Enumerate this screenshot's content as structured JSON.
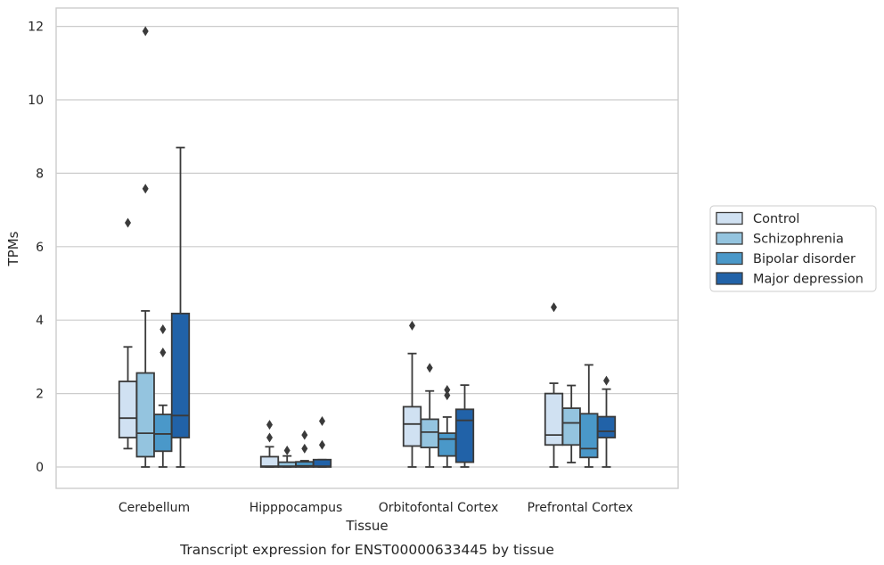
{
  "chart_data": {
    "type": "boxplot",
    "caption": "Transcript expression for ENST00000633445 by tissue",
    "xlabel": "Tissue",
    "ylabel": "TPMs",
    "ylim": [
      -0.58,
      12.5
    ],
    "yticks": [
      0,
      2,
      4,
      6,
      8,
      10,
      12
    ],
    "grid": true,
    "legend_position": "right",
    "categories": [
      "Cerebellum",
      "Hipppocampus",
      "Orbitofontal Cortex",
      "Prefrontal Cortex"
    ],
    "series": [
      {
        "name": "Control",
        "color": "#d0e1f2",
        "boxes": [
          {
            "whislo": 0.5,
            "q1": 0.8,
            "med": 1.33,
            "q3": 2.33,
            "whishi": 3.27,
            "fliers": [
              6.65
            ]
          },
          {
            "whislo": 0.0,
            "q1": 0.0,
            "med": 0.02,
            "q3": 0.28,
            "whishi": 0.55,
            "fliers": [
              0.8,
              1.15
            ]
          },
          {
            "whislo": 0.0,
            "q1": 0.57,
            "med": 1.17,
            "q3": 1.64,
            "whishi": 3.09,
            "fliers": [
              3.85
            ]
          },
          {
            "whislo": 0.0,
            "q1": 0.6,
            "med": 0.87,
            "q3": 2.0,
            "whishi": 2.28,
            "fliers": [
              4.35
            ]
          }
        ]
      },
      {
        "name": "Schizophrenia",
        "color": "#94c4df",
        "boxes": [
          {
            "whislo": 0.0,
            "q1": 0.28,
            "med": 0.92,
            "q3": 2.56,
            "whishi": 4.25,
            "fliers": [
              7.58,
              11.87
            ]
          },
          {
            "whislo": 0.0,
            "q1": 0.0,
            "med": 0.02,
            "q3": 0.13,
            "whishi": 0.3,
            "fliers": [
              0.45
            ]
          },
          {
            "whislo": 0.0,
            "q1": 0.53,
            "med": 0.95,
            "q3": 1.3,
            "whishi": 2.07,
            "fliers": [
              2.7
            ]
          },
          {
            "whislo": 0.12,
            "q1": 0.6,
            "med": 1.2,
            "q3": 1.6,
            "whishi": 2.22,
            "fliers": []
          }
        ]
      },
      {
        "name": "Bipolar disorder",
        "color": "#4a98c9",
        "boxes": [
          {
            "whislo": 0.0,
            "q1": 0.43,
            "med": 0.9,
            "q3": 1.43,
            "whishi": 1.68,
            "fliers": [
              3.12,
              3.75
            ]
          },
          {
            "whislo": 0.0,
            "q1": 0.0,
            "med": 0.03,
            "q3": 0.14,
            "whishi": 0.17,
            "fliers": [
              0.5,
              0.87
            ]
          },
          {
            "whislo": 0.0,
            "q1": 0.3,
            "med": 0.76,
            "q3": 0.92,
            "whishi": 1.36,
            "fliers": [
              1.95,
              2.1
            ]
          },
          {
            "whislo": 0.0,
            "q1": 0.26,
            "med": 0.5,
            "q3": 1.45,
            "whishi": 2.78,
            "fliers": []
          }
        ]
      },
      {
        "name": "Major depression",
        "color": "#2162a8",
        "boxes": [
          {
            "whislo": 0.0,
            "q1": 0.8,
            "med": 1.4,
            "q3": 4.18,
            "whishi": 8.7,
            "fliers": []
          },
          {
            "whislo": 0.0,
            "q1": 0.0,
            "med": 0.02,
            "q3": 0.2,
            "whishi": 0.2,
            "fliers": [
              0.6,
              1.25
            ]
          },
          {
            "whislo": 0.0,
            "q1": 0.13,
            "med": 1.27,
            "q3": 1.57,
            "whishi": 2.23,
            "fliers": []
          },
          {
            "whislo": 0.0,
            "q1": 0.8,
            "med": 0.97,
            "q3": 1.37,
            "whishi": 2.12,
            "fliers": [
              2.35
            ]
          }
        ]
      }
    ]
  }
}
